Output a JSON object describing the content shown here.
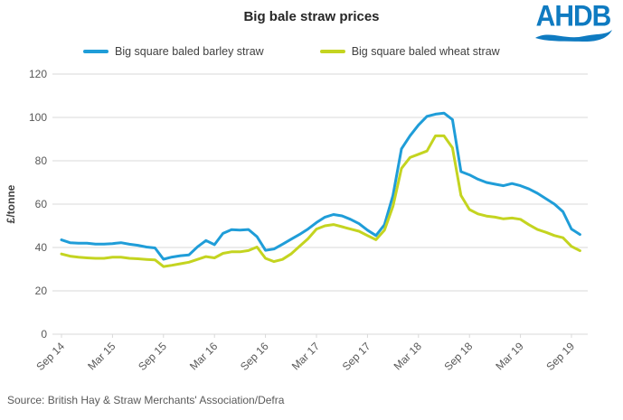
{
  "header": {
    "title": "Big bale straw prices",
    "logo_text": "AHDB",
    "logo_color": "#0f7bc1"
  },
  "legend": [
    {
      "label": "Big square baled barley straw",
      "color": "#1f9dd8"
    },
    {
      "label": "Big square baled wheat straw",
      "color": "#c4d420"
    }
  ],
  "source": "Source: British Hay & Straw Merchants' Association/Defra",
  "chart_data": {
    "type": "line",
    "title": "Big bale straw prices",
    "xlabel": "",
    "ylabel": "£/tonne",
    "ylim": [
      0,
      120
    ],
    "y_tick_labels": [
      0,
      20,
      40,
      60,
      80,
      100,
      120
    ],
    "grid": "horizontal",
    "legend_position": "top",
    "x_unit": "month",
    "x_tick_every": 6,
    "x_tick_labels": [
      "Sep 14",
      "Mar 15",
      "Sep 15",
      "Mar 16",
      "Sep 16",
      "Mar 17",
      "Sep 17",
      "Mar 18",
      "Sep 18",
      "Mar 19",
      "Sep 19"
    ],
    "series": [
      {
        "name": "Big square baled barley straw",
        "color": "#1f9dd8",
        "values": [
          43.5,
          42.2,
          42,
          42,
          41.6,
          41.6,
          41.8,
          42.2,
          41.5,
          41,
          40.2,
          39.8,
          34.6,
          35.6,
          36.2,
          36.6,
          40.3,
          43.2,
          41.3,
          46.5,
          48.2,
          48,
          48.3,
          45,
          38.7,
          39.3,
          41.5,
          43.8,
          46,
          48.5,
          51.5,
          54,
          55.2,
          54.6,
          53,
          51,
          48,
          45.5,
          50.5,
          64,
          85.5,
          91.5,
          96.5,
          100.5,
          101.5,
          102,
          99,
          75,
          73.5,
          71.5,
          70,
          69.2,
          68.5,
          69.5,
          68.5,
          67,
          65,
          62.5,
          60,
          56.5,
          48.5,
          46
        ]
      },
      {
        "name": "Big square baled wheat straw",
        "color": "#c4d420",
        "values": [
          37,
          36,
          35.5,
          35.2,
          35,
          35,
          35.5,
          35.5,
          35,
          34.8,
          34.5,
          34.3,
          31.2,
          31.8,
          32.5,
          33.2,
          34.5,
          35.8,
          35.2,
          37.3,
          38,
          38,
          38.6,
          40.2,
          35,
          33.5,
          34.5,
          37,
          40.5,
          44,
          48.5,
          50,
          50.6,
          49.6,
          48.5,
          47.5,
          45.5,
          43.6,
          48,
          59,
          76.5,
          81.5,
          83,
          84.5,
          91.5,
          91.5,
          86,
          64,
          57.5,
          55.5,
          54.5,
          54,
          53.2,
          53.6,
          53,
          50.5,
          48.3,
          47,
          45.5,
          44.5,
          40.5,
          38.5
        ]
      }
    ]
  }
}
